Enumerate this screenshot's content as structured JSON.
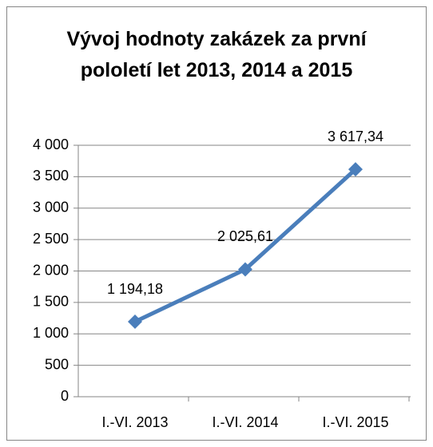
{
  "chart_data": {
    "type": "line",
    "title": "Vývoj hodnoty zakázek za první pololetí let 2013, 2014 a 2015",
    "categories": [
      "I.-VI. 2013",
      "I.-VI. 2014",
      "I.-VI. 2015"
    ],
    "values": [
      1194.18,
      2025.61,
      3617.34
    ],
    "value_labels": [
      "1 194,18",
      "2 025,61",
      "3 617,34"
    ],
    "color": "#4a7ebb",
    "ylim": [
      0,
      4000
    ],
    "yticks": [
      0,
      500,
      {
        "value": 1000,
        "label": "1 000"
      },
      {
        "value": 1500,
        "label": "1 500"
      },
      {
        "value": 2000,
        "label": "2 000"
      },
      {
        "value": 2500,
        "label": "2 500"
      },
      {
        "value": 3000,
        "label": "3 000"
      },
      {
        "value": 3500,
        "label": "3 500"
      },
      {
        "value": 4000,
        "label": "4 000"
      }
    ],
    "grid": true
  }
}
